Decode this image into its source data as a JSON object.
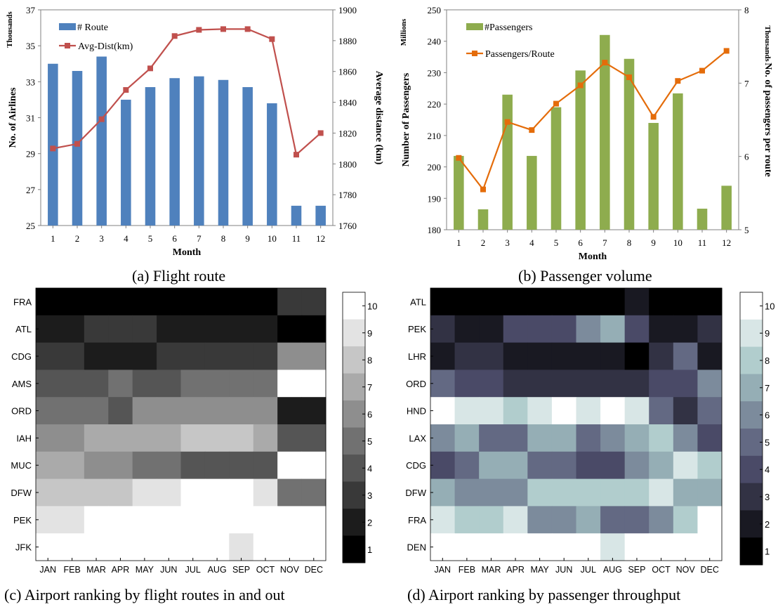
{
  "chart_data": [
    {
      "type": "bar",
      "panel": "a",
      "caption": "(a) Flight route",
      "categories": [
        "1",
        "2",
        "3",
        "4",
        "5",
        "6",
        "7",
        "8",
        "9",
        "10",
        "11",
        "12"
      ],
      "xlabel": "Month",
      "ylabel": "No. of Airlines",
      "ylabel_unit": "Thousands",
      "y2label": "Average distance (km)",
      "ylim": [
        25,
        37
      ],
      "yticks": [
        "25",
        "27",
        "29",
        "31",
        "33",
        "35",
        "37"
      ],
      "y2lim": [
        1760,
        1900
      ],
      "y2ticks": [
        "1760",
        "1780",
        "1800",
        "1820",
        "1840",
        "1860",
        "1880",
        "1900"
      ],
      "legend_position": "top-left",
      "series": [
        {
          "name": "# Route",
          "kind": "bar",
          "axis": "left",
          "color": "#4f81bd",
          "values": [
            34.0,
            33.6,
            34.4,
            32.0,
            32.7,
            33.2,
            33.3,
            33.1,
            32.7,
            31.8,
            26.1,
            26.1
          ]
        },
        {
          "name": "Avg-Dist(km)",
          "kind": "line",
          "axis": "right",
          "color": "#c0504d",
          "values": [
            1810,
            1813,
            1829,
            1848,
            1862,
            1883,
            1887,
            1887.5,
            1887.5,
            1881,
            1806,
            1820
          ]
        }
      ]
    },
    {
      "type": "bar",
      "panel": "b",
      "caption": "(b) Passenger volume",
      "categories": [
        "1",
        "2",
        "3",
        "4",
        "5",
        "6",
        "7",
        "8",
        "9",
        "10",
        "11",
        "12"
      ],
      "xlabel": "Month",
      "ylabel": "Number of Passengers",
      "ylabel_unit": "Millions",
      "y2label": "No. of passengers per route",
      "y2label_unit": "Thousands",
      "ylim": [
        180,
        250
      ],
      "yticks": [
        "180",
        "190",
        "200",
        "210",
        "220",
        "230",
        "240",
        "250"
      ],
      "y2lim": [
        5,
        8
      ],
      "y2ticks": [
        "5",
        "6",
        "7",
        "8"
      ],
      "legend_position": "top-left",
      "series": [
        {
          "name": "#Passengers",
          "kind": "bar",
          "axis": "left",
          "color": "#8eac4e",
          "values": [
            203.5,
            186.5,
            223,
            203.5,
            219,
            230.7,
            242,
            234.4,
            214,
            223.4,
            186.7,
            194
          ]
        },
        {
          "name": "Passengers/Route",
          "kind": "line",
          "axis": "right",
          "color": "#e46c0a",
          "values": [
            5.98,
            5.55,
            6.47,
            6.36,
            6.72,
            6.97,
            7.28,
            7.08,
            6.54,
            7.03,
            7.17,
            7.44
          ]
        }
      ]
    },
    {
      "type": "heatmap",
      "panel": "c",
      "caption": "(c) Airport ranking by flight routes in and out",
      "rows": [
        "FRA",
        "ATL",
        "CDG",
        "AMS",
        "ORD",
        "IAH",
        "MUC",
        "DFW",
        "PEK",
        "JFK"
      ],
      "columns": [
        "JAN",
        "FEB",
        "MAR",
        "APR",
        "MAY",
        "JUN",
        "JUL",
        "AUG",
        "SEP",
        "OCT",
        "NOV",
        "DEC"
      ],
      "colorbar_ticks": [
        "10",
        "9",
        "8",
        "7",
        "6",
        "5",
        "4",
        "3",
        "2",
        "1"
      ],
      "colorbar_range": [
        1,
        10
      ],
      "colormap": "gray",
      "values": [
        [
          1,
          1,
          1,
          1,
          1,
          1,
          1,
          1,
          1,
          1,
          3,
          3
        ],
        [
          2,
          2,
          3,
          3,
          3,
          2,
          2,
          2,
          2,
          2,
          1,
          1
        ],
        [
          3,
          3,
          2,
          2,
          2,
          3,
          3,
          3,
          3,
          3,
          6,
          6
        ],
        [
          4,
          4,
          4,
          5,
          4,
          4,
          5,
          5,
          5,
          5,
          10,
          10
        ],
        [
          5,
          5,
          5,
          4,
          6,
          6,
          6,
          6,
          6,
          6,
          2,
          2
        ],
        [
          6,
          6,
          7,
          7,
          7,
          7,
          8,
          8,
          8,
          7,
          4,
          4
        ],
        [
          7,
          7,
          6,
          6,
          5,
          5,
          4,
          4,
          4,
          4,
          10,
          10
        ],
        [
          8,
          8,
          8,
          8,
          9,
          9,
          10,
          10,
          10,
          9,
          5,
          5
        ],
        [
          9,
          9,
          10,
          10,
          10,
          10,
          10,
          10,
          10,
          10,
          10,
          10
        ],
        [
          10,
          10,
          10,
          10,
          10,
          10,
          10,
          10,
          9,
          10,
          10,
          10
        ]
      ]
    },
    {
      "type": "heatmap",
      "panel": "d",
      "caption": "(d) Airport ranking by passenger throughput",
      "rows": [
        "ATL",
        "PEK",
        "LHR",
        "ORD",
        "HND",
        "LAX",
        "CDG",
        "DFW",
        "FRA",
        "DEN"
      ],
      "columns": [
        "JAN",
        "FEB",
        "MAR",
        "APR",
        "MAY",
        "JUN",
        "JUL",
        "AUG",
        "SEP",
        "OCT",
        "NOV",
        "DEC"
      ],
      "colorbar_ticks": [
        "10",
        "9",
        "8",
        "7",
        "6",
        "5",
        "4",
        "3",
        "2",
        "1"
      ],
      "colorbar_range": [
        1,
        10
      ],
      "colormap": "bone",
      "values": [
        [
          1,
          1,
          1,
          1,
          1,
          1,
          1,
          1,
          2,
          1,
          1,
          1
        ],
        [
          3,
          2,
          2,
          4,
          4,
          4,
          6,
          7,
          4,
          2,
          2,
          3
        ],
        [
          2,
          3,
          3,
          2,
          2,
          2,
          2,
          2,
          1,
          3,
          5,
          2
        ],
        [
          5,
          4,
          4,
          3,
          3,
          3,
          3,
          3,
          3,
          4,
          4,
          6
        ],
        [
          10,
          9,
          9,
          8,
          9,
          10,
          9,
          10,
          9,
          5,
          3,
          5
        ],
        [
          6,
          7,
          5,
          5,
          7,
          7,
          5,
          6,
          7,
          8,
          6,
          4
        ],
        [
          4,
          5,
          7,
          7,
          5,
          5,
          4,
          4,
          6,
          7,
          9,
          8
        ],
        [
          7,
          6,
          6,
          6,
          8,
          8,
          8,
          8,
          8,
          9,
          7,
          7
        ],
        [
          9,
          8,
          8,
          9,
          6,
          6,
          7,
          5,
          5,
          6,
          8,
          10
        ],
        [
          10,
          10,
          10,
          10,
          10,
          10,
          10,
          9,
          10,
          10,
          10,
          10
        ]
      ]
    }
  ]
}
